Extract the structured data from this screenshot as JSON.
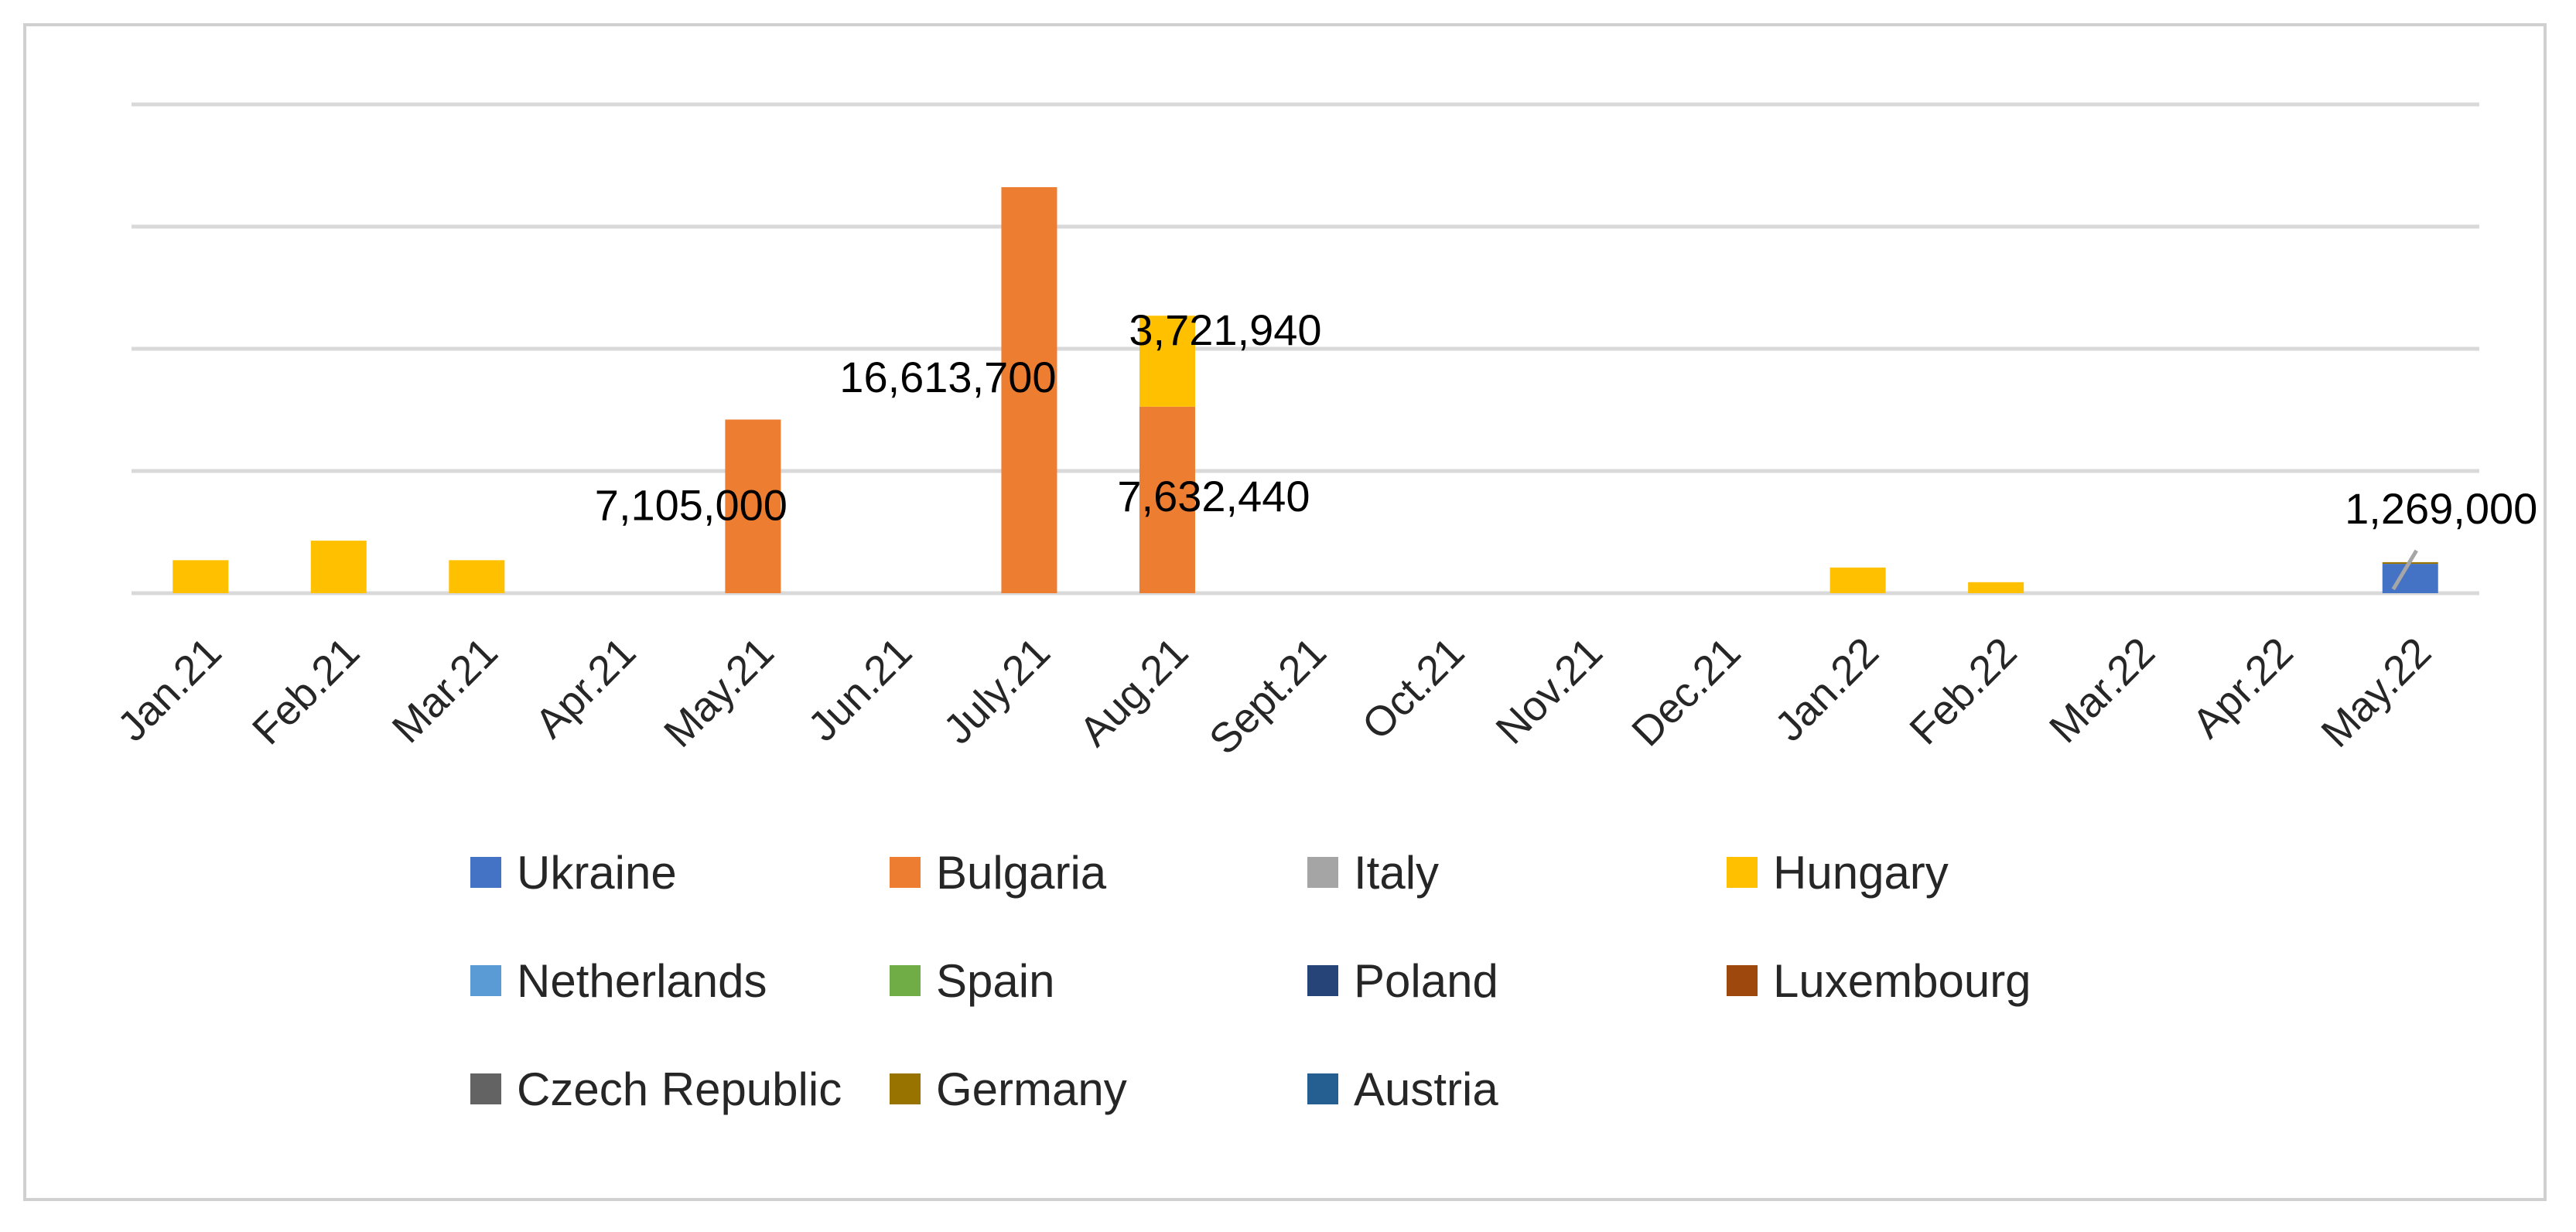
{
  "chart_data": {
    "type": "bar",
    "stacked": true,
    "title": "",
    "xlabel": "",
    "ylabel": "",
    "ylim": [
      0,
      20000000
    ],
    "grid": true,
    "legend_position": "bottom",
    "categories": [
      "Jan.21",
      "Feb.21",
      "Mar.21",
      "Apr.21",
      "May.21",
      "Jun.21",
      "July.21",
      "Aug.21",
      "Sept.21",
      "Oct.21",
      "Nov.21",
      "Dec.21",
      "Jan.22",
      "Feb.22",
      "Mar.22",
      "Apr.22",
      "May.22"
    ],
    "series": [
      {
        "name": "Ukraine",
        "color": "#4472C4",
        "values": [
          0,
          0,
          0,
          0,
          0,
          0,
          0,
          0,
          0,
          0,
          0,
          0,
          0,
          0,
          0,
          0,
          1200000
        ]
      },
      {
        "name": "Bulgaria",
        "color": "#ED7D31",
        "values": [
          0,
          0,
          0,
          0,
          7105000,
          0,
          16613700,
          7632440,
          0,
          0,
          0,
          0,
          0,
          0,
          0,
          0,
          0
        ]
      },
      {
        "name": "Italy",
        "color": "#A5A5A5",
        "values": [
          0,
          0,
          0,
          0,
          0,
          0,
          0,
          0,
          0,
          0,
          0,
          0,
          0,
          0,
          0,
          0,
          0
        ]
      },
      {
        "name": "Hungary",
        "color": "#FFC000",
        "values": [
          1350000,
          2150000,
          1350000,
          0,
          0,
          0,
          0,
          3721940,
          0,
          0,
          0,
          0,
          1050000,
          450000,
          0,
          0,
          0
        ]
      },
      {
        "name": "Netherlands",
        "color": "#5B9BD5",
        "values": [
          0,
          0,
          0,
          0,
          0,
          0,
          0,
          0,
          0,
          0,
          0,
          0,
          0,
          0,
          0,
          0,
          0
        ]
      },
      {
        "name": "Spain",
        "color": "#70AD47",
        "values": [
          0,
          0,
          0,
          0,
          0,
          0,
          0,
          0,
          0,
          0,
          0,
          0,
          0,
          0,
          0,
          0,
          0
        ]
      },
      {
        "name": "Poland",
        "color": "#264478",
        "values": [
          0,
          0,
          0,
          0,
          0,
          0,
          0,
          0,
          0,
          0,
          0,
          0,
          0,
          0,
          0,
          0,
          0
        ]
      },
      {
        "name": "Luxembourg",
        "color": "#9E480E",
        "values": [
          0,
          0,
          0,
          0,
          0,
          0,
          0,
          0,
          0,
          0,
          0,
          0,
          0,
          0,
          0,
          0,
          0
        ]
      },
      {
        "name": "Czech Republic",
        "color": "#636363",
        "values": [
          0,
          0,
          0,
          0,
          0,
          0,
          0,
          0,
          0,
          0,
          0,
          0,
          0,
          0,
          0,
          0,
          0
        ]
      },
      {
        "name": "Germany",
        "color": "#997300",
        "values": [
          0,
          0,
          0,
          0,
          0,
          0,
          0,
          0,
          0,
          0,
          0,
          0,
          0,
          0,
          0,
          0,
          69000
        ]
      },
      {
        "name": "Austria",
        "color": "#255E91",
        "values": [
          0,
          0,
          0,
          0,
          0,
          0,
          0,
          0,
          0,
          0,
          0,
          0,
          0,
          0,
          0,
          0,
          0
        ]
      }
    ],
    "data_labels": [
      {
        "category": "May.21",
        "series": "Bulgaria",
        "text": "7,105,000"
      },
      {
        "category": "July.21",
        "series": "Bulgaria",
        "text": "16,613,700"
      },
      {
        "category": "Aug.21",
        "series": "Hungary",
        "text": "3,721,940"
      },
      {
        "category": "Aug.21",
        "series": "Bulgaria",
        "text": "7,632,440"
      },
      {
        "category": "May.22",
        "series": "total",
        "text": "1,269,000"
      }
    ]
  }
}
